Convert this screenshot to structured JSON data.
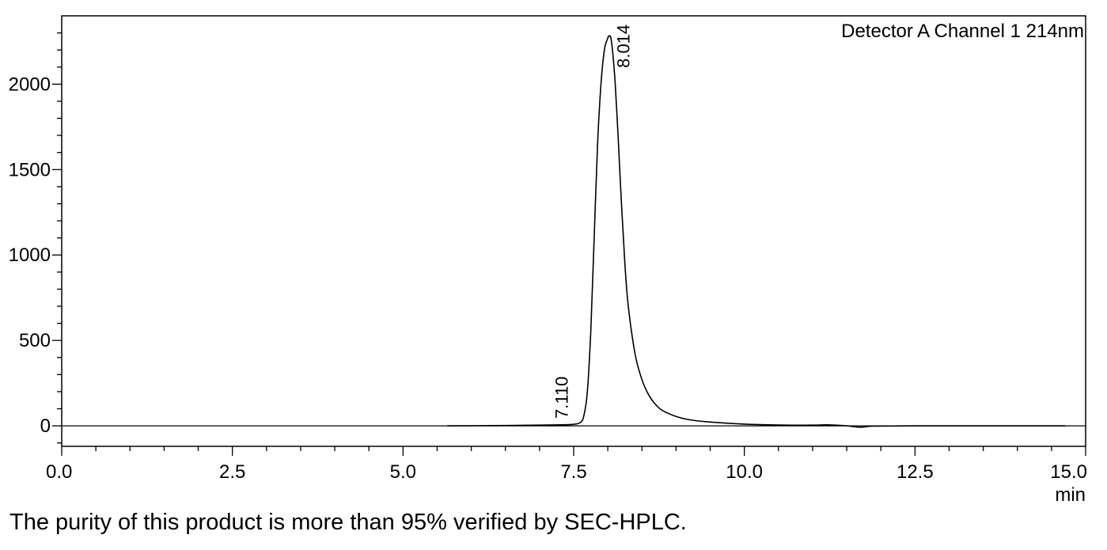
{
  "chart_data": {
    "type": "line",
    "legend": "Detector A Channel 1 214nm",
    "x_unit": "min",
    "xlim": [
      0,
      15
    ],
    "ylim": [
      -120,
      2400
    ],
    "x_ticks": [
      0,
      2.5,
      5,
      7.5,
      10,
      12.5,
      15
    ],
    "x_tick_labels": [
      "0.0",
      "2.5",
      "5.0",
      "7.5",
      "10.0",
      "12.5",
      "15.0"
    ],
    "y_ticks": [
      0,
      500,
      1000,
      1500,
      2000
    ],
    "y_tick_labels": [
      "0",
      "500",
      "1000",
      "1500",
      "2000"
    ],
    "grid": false,
    "series": [
      {
        "x": [
          5.65,
          6.5,
          7.0,
          7.11,
          7.3,
          7.5,
          7.6,
          7.65,
          7.7,
          7.75,
          7.8,
          7.85,
          7.9,
          7.95,
          8.0,
          8.014,
          8.05,
          8.1,
          8.15,
          8.2,
          8.25,
          8.3,
          8.4,
          8.5,
          8.6,
          8.7,
          8.8,
          9.0,
          9.2,
          9.5,
          10.0,
          10.5,
          11.0,
          11.2,
          11.3,
          11.5,
          11.7,
          11.9,
          12.5,
          13.0,
          14.0,
          14.7
        ],
        "y": [
          0,
          2,
          4,
          5,
          6,
          9,
          20,
          60,
          200,
          550,
          1100,
          1650,
          2000,
          2200,
          2270,
          2280,
          2260,
          2050,
          1700,
          1300,
          950,
          700,
          420,
          270,
          180,
          125,
          90,
          55,
          35,
          22,
          10,
          5,
          4,
          6,
          5,
          0,
          -8,
          -2,
          0,
          0,
          0,
          0
        ]
      }
    ],
    "peak_labels": [
      {
        "x": 7.11,
        "y": 5,
        "text": "7.110"
      },
      {
        "x": 8.014,
        "y": 2280,
        "text": "8.014"
      }
    ]
  },
  "caption": "The purity of this product is more than 95% verified by SEC-HPLC."
}
